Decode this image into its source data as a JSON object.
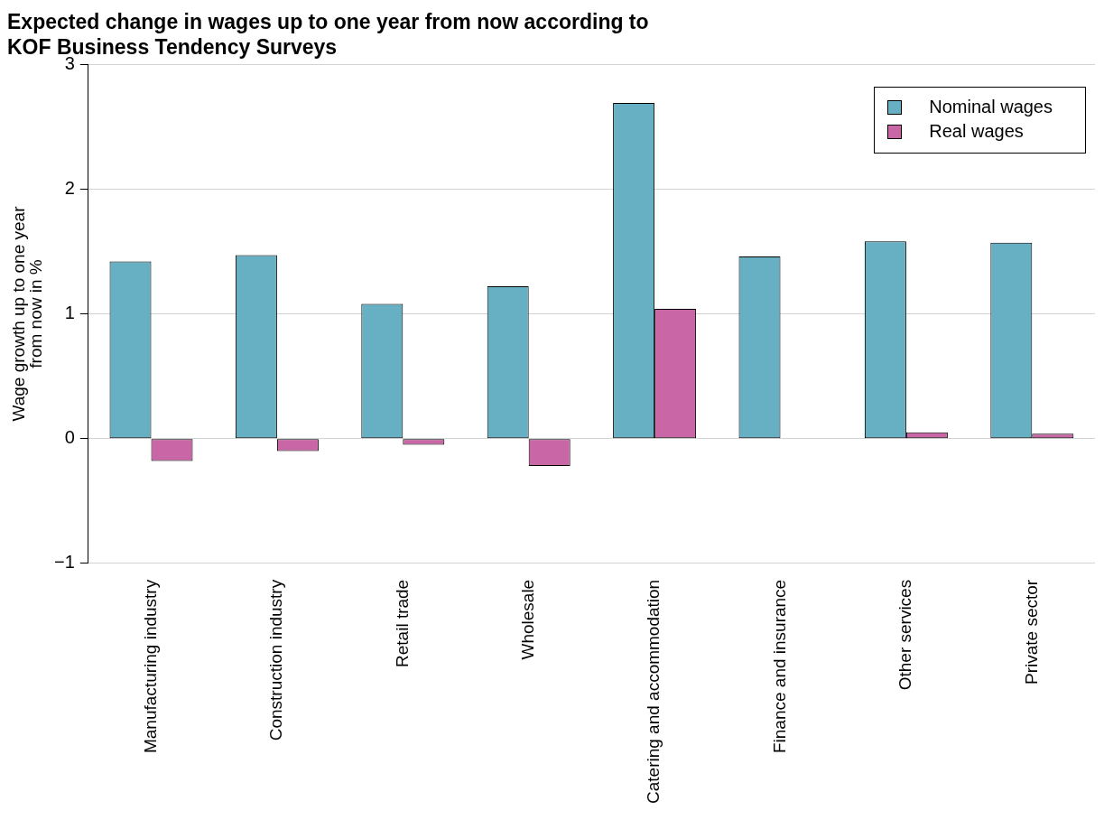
{
  "chart_data": {
    "type": "bar",
    "title": "Expected change in wages up to one year from now according to\nKOF Business Tendency Surveys",
    "ylabel": "Wage growth up to one year\nfrom now in %",
    "categories": [
      "Manufacturing industry",
      "Construction industry",
      "Retail trade",
      "Wholesale",
      "Catering and accommodation",
      "Finance and insurance",
      "Other services",
      "Private sector"
    ],
    "series": [
      {
        "name": "Nominal wages",
        "color": "#67afc2",
        "values": [
          1.42,
          1.47,
          1.08,
          1.22,
          2.69,
          1.46,
          1.58,
          1.57
        ]
      },
      {
        "name": "Real wages",
        "color": "#c966a5",
        "values": [
          -0.18,
          -0.1,
          -0.05,
          -0.22,
          1.04,
          0.0,
          0.05,
          0.04
        ]
      }
    ],
    "ylim": [
      -1,
      3
    ],
    "yticks": [
      -1,
      0,
      1,
      2,
      3
    ],
    "grid": "y",
    "legend": "top right"
  }
}
